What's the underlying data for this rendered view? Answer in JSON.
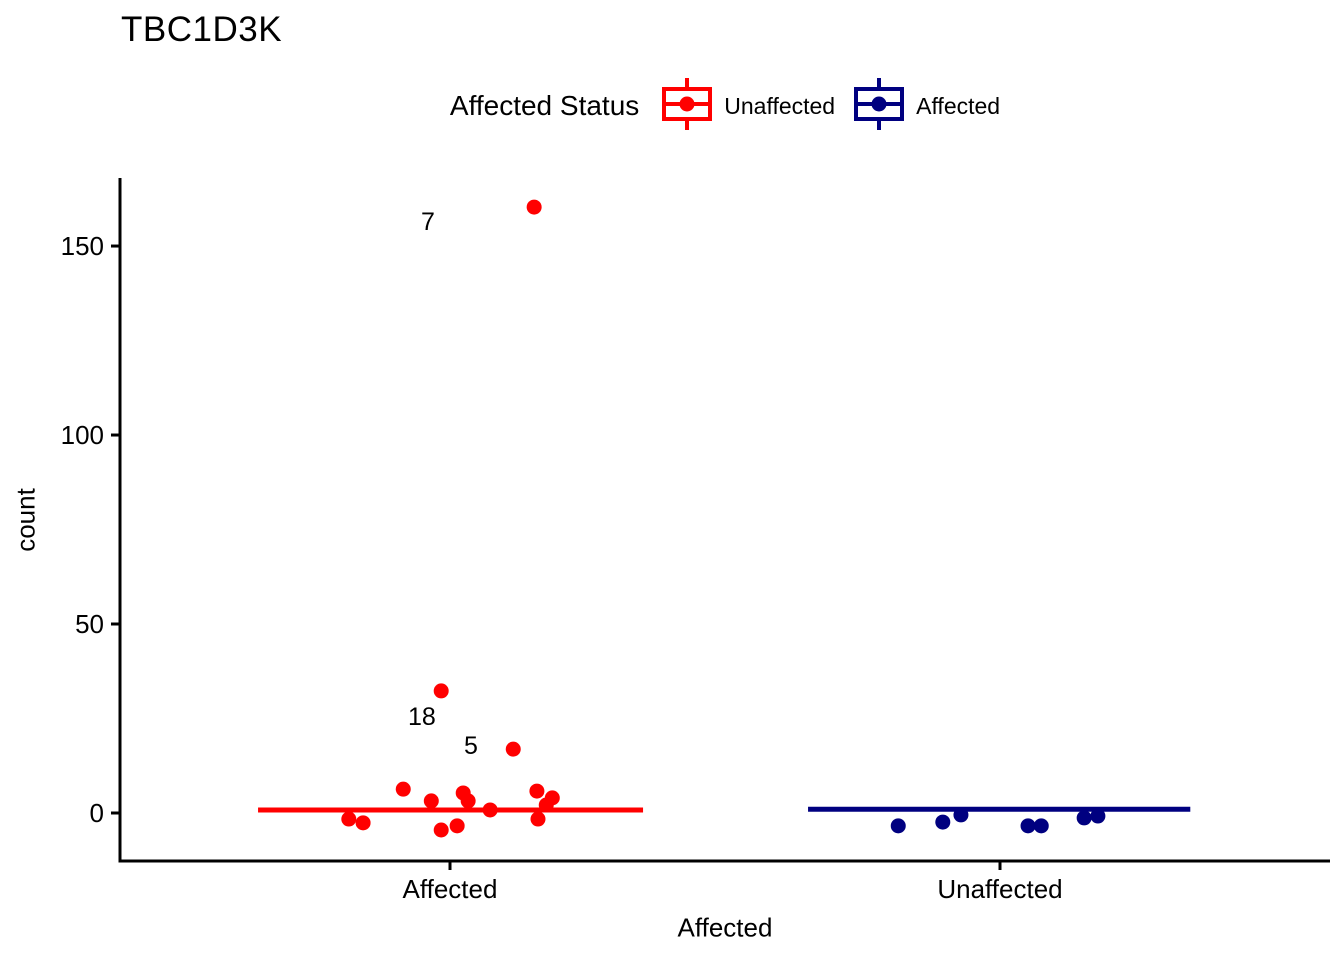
{
  "title": "TBC1D3K",
  "legend": {
    "title": "Affected Status",
    "entries": [
      {
        "label": "Unaffected",
        "color": "#FF0000"
      },
      {
        "label": "Affected",
        "color": "#000080"
      }
    ]
  },
  "chart_data": {
    "type": "scatter",
    "subtype": "jittered-points-with-boxplot-median",
    "title": "TBC1D3K",
    "xlabel": "Affected",
    "ylabel": "count",
    "categories": [
      "Affected",
      "Unaffected"
    ],
    "category_positions": [
      1,
      2
    ],
    "yticks": [
      0,
      50,
      100,
      150
    ],
    "xlim": [
      0.4,
      2.6
    ],
    "ylim": [
      -12.7,
      168
    ],
    "grid": false,
    "legend_position": "top",
    "axis_color": "#000000",
    "tick_label_color": "#000000",
    "series": [
      {
        "name": "Unaffected",
        "category": "Affected",
        "color": "#FF0000",
        "median": 0.8,
        "median_span": [
          0.651,
          1.351
        ],
        "points": [
          {
            "x": 1.153,
            "y": 160.3
          },
          {
            "x": 0.984,
            "y": 32.3
          },
          {
            "x": 1.115,
            "y": 16.9
          },
          {
            "x": 0.915,
            "y": 6.3
          },
          {
            "x": 0.966,
            "y": 3.2
          },
          {
            "x": 1.024,
            "y": 5.3
          },
          {
            "x": 1.033,
            "y": 3.2
          },
          {
            "x": 1.073,
            "y": 0.8
          },
          {
            "x": 1.158,
            "y": 5.8
          },
          {
            "x": 1.186,
            "y": 4.0
          },
          {
            "x": 1.175,
            "y": 2.1
          },
          {
            "x": 1.16,
            "y": -1.6
          },
          {
            "x": 0.816,
            "y": -1.6
          },
          {
            "x": 0.842,
            "y": -2.6
          },
          {
            "x": 0.984,
            "y": -4.5
          },
          {
            "x": 1.013,
            "y": -3.4
          }
        ]
      },
      {
        "name": "Affected",
        "category": "Unaffected",
        "color": "#000080",
        "median": 1.0,
        "median_span": [
          1.651,
          2.346
        ],
        "points": [
          {
            "x": 1.815,
            "y": -3.4
          },
          {
            "x": 1.896,
            "y": -2.4
          },
          {
            "x": 1.929,
            "y": -0.5
          },
          {
            "x": 2.051,
            "y": -3.4
          },
          {
            "x": 2.075,
            "y": -3.4
          },
          {
            "x": 2.153,
            "y": -1.3
          },
          {
            "x": 2.178,
            "y": -0.8
          }
        ]
      }
    ],
    "annotations": [
      {
        "label": "7",
        "x": 0.96,
        "y": 156.3
      },
      {
        "label": "18",
        "x": 0.949,
        "y": 25.4
      },
      {
        "label": "5",
        "x": 1.038,
        "y": 17.7
      }
    ]
  }
}
